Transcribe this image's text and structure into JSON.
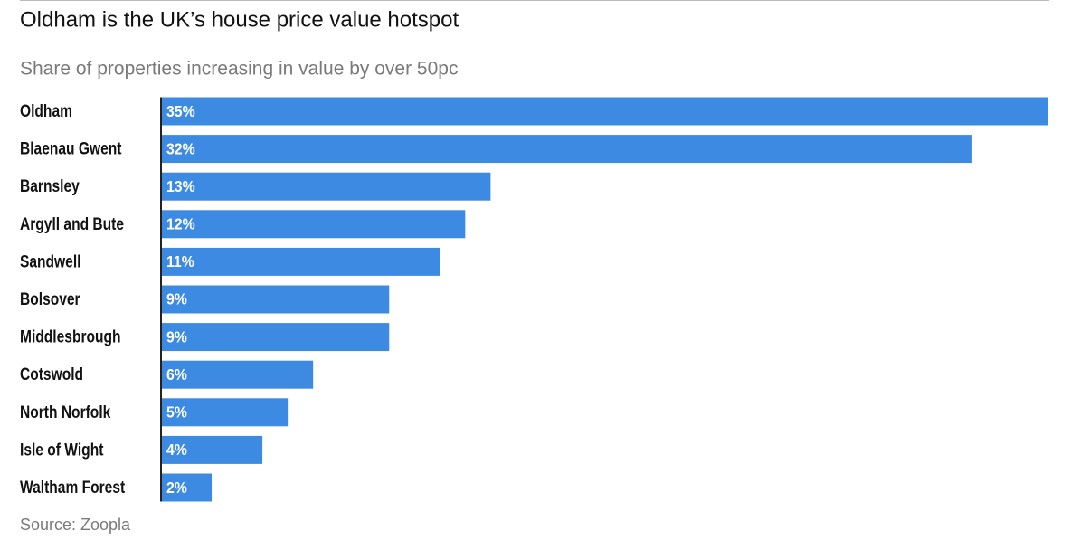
{
  "chart_data": {
    "type": "bar",
    "orientation": "horizontal",
    "title": "Oldham is the UK’s house price value hotspot",
    "subtitle": "Share of properties increasing in value by over 50pc",
    "categories": [
      "Oldham",
      "Blaenau Gwent",
      "Barnsley",
      "Argyll and Bute",
      "Sandwell",
      "Bolsover",
      "Middlesbrough",
      "Cotswold",
      "North Norfolk",
      "Isle of Wight",
      "Waltham Forest"
    ],
    "values": [
      35,
      32,
      13,
      12,
      11,
      9,
      9,
      6,
      5,
      4,
      2
    ],
    "value_labels": [
      "35%",
      "32%",
      "13%",
      "12%",
      "11%",
      "9%",
      "9%",
      "6%",
      "5%",
      "4%",
      "2%"
    ],
    "color": "#3d8ae3",
    "source": "Source: Zoopla"
  }
}
